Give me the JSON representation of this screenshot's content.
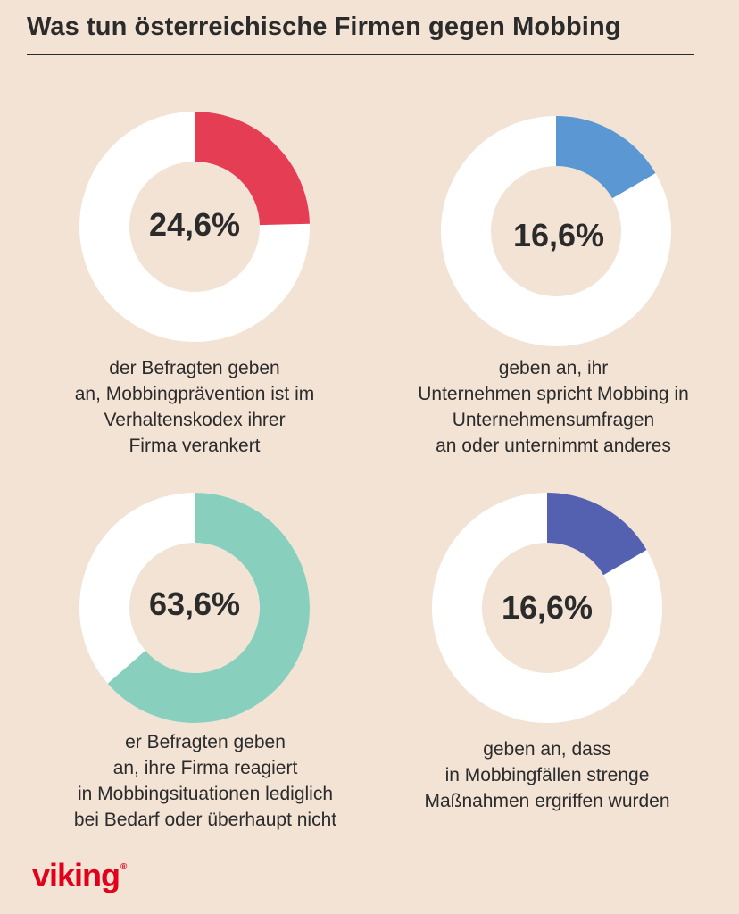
{
  "title": "Was tun österreichische Firmen gegen Mobbing",
  "logo": {
    "text": "viking",
    "mark": "®"
  },
  "colors": {
    "background": "#f2e3d5",
    "ring": "#ffffff",
    "text": "#2b2b2b",
    "logo": "#e2001a"
  },
  "chart_data": [
    {
      "type": "pie",
      "value_label": "24,6%",
      "values": [
        24.6
      ],
      "color": "#e43d54",
      "caption_lines": [
        "der Befragten geben",
        "an, Mobbingprävention ist im",
        "Verhaltenskodex ihrer",
        "Firma verankert"
      ]
    },
    {
      "type": "pie",
      "value_label": "16,6%",
      "values": [
        16.6
      ],
      "color": "#5b98d3",
      "caption_lines": [
        "geben an, ihr",
        "Unternehmen spricht Mobbing in",
        "Unternehmensumfragen",
        "an oder unternimmt anderes"
      ]
    },
    {
      "type": "pie",
      "value_label": "63,6%",
      "values": [
        63.6
      ],
      "color": "#88cfbd",
      "caption_lines": [
        "er Befragten geben",
        "an, ihre Firma reagiert",
        "in Mobbingsituationen lediglich",
        "bei Bedarf oder überhaupt nicht"
      ]
    },
    {
      "type": "pie",
      "value_label": "16,6%",
      "values": [
        16.6
      ],
      "color": "#5460b0",
      "caption_lines": [
        "geben an, dass",
        "in Mobbingfällen strenge",
        "Maßnahmen ergriffen wurden"
      ]
    }
  ]
}
